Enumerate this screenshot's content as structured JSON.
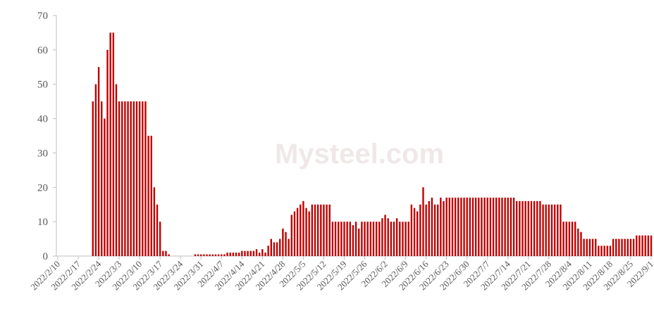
{
  "chart_data": {
    "type": "bar",
    "color": "#c00000",
    "watermark": "Mysteel.com",
    "categories": [
      "2022/2/10",
      null,
      null,
      null,
      null,
      null,
      null,
      "2022/2/17",
      null,
      null,
      null,
      null,
      null,
      null,
      "2022/2/24",
      null,
      null,
      null,
      null,
      null,
      null,
      "2022/3/3",
      null,
      null,
      null,
      null,
      null,
      null,
      "2022/3/10",
      null,
      null,
      null,
      null,
      null,
      null,
      "2022/3/17",
      null,
      null,
      null,
      null,
      null,
      null,
      "2022/3/24",
      null,
      null,
      null,
      null,
      null,
      null,
      "2022/3/31",
      null,
      null,
      null,
      null,
      null,
      null,
      "2022/4/7",
      null,
      null,
      null,
      null,
      null,
      null,
      "2022/4/14",
      null,
      null,
      null,
      null,
      null,
      null,
      "2022/4/21",
      null,
      null,
      null,
      null,
      null,
      null,
      "2022/4/28",
      null,
      null,
      null,
      null,
      null,
      null,
      "2022/5/5",
      null,
      null,
      null,
      null,
      null,
      null,
      "2022/5/12",
      null,
      null,
      null,
      null,
      null,
      null,
      "2022/5/19",
      null,
      null,
      null,
      null,
      null,
      null,
      "2022/5/26",
      null,
      null,
      null,
      null,
      null,
      null,
      "2022/6/2",
      null,
      null,
      null,
      null,
      null,
      null,
      "2022/6/9",
      null,
      null,
      null,
      null,
      null,
      null,
      "2022/6/16",
      null,
      null,
      null,
      null,
      null,
      null,
      "2022/6/23",
      null,
      null,
      null,
      null,
      null,
      null,
      "2022/6/30",
      null,
      null,
      null,
      null,
      null,
      null,
      "2022/7/7",
      null,
      null,
      null,
      null,
      null,
      null,
      "2022/7/14",
      null,
      null,
      null,
      null,
      null,
      null,
      "2022/7/21",
      null,
      null,
      null,
      null,
      null,
      null,
      "2022/7/28",
      null,
      null,
      null,
      null,
      null,
      null,
      "2022/8/4",
      null,
      null,
      null,
      null,
      null,
      null,
      "2022/8/11",
      null,
      null,
      null,
      null,
      null,
      null,
      "2022/8/18",
      null,
      null,
      null,
      null,
      null,
      null,
      "2022/8/25",
      null,
      null,
      null,
      null,
      null,
      null,
      "2022/9/1"
    ],
    "values": [
      null,
      null,
      null,
      null,
      null,
      null,
      null,
      null,
      null,
      null,
      null,
      null,
      45,
      50,
      55,
      45,
      40,
      60,
      65,
      65,
      50,
      45,
      45,
      45,
      45,
      45,
      45,
      45,
      45,
      45,
      45,
      35,
      35,
      20,
      15,
      10,
      1.5,
      1.5,
      0.5,
      null,
      null,
      null,
      null,
      null,
      null,
      null,
      null,
      0.5,
      0.5,
      0.5,
      0.5,
      0.5,
      0.5,
      0.5,
      0.5,
      0.5,
      0.5,
      0.5,
      1,
      1,
      1,
      1,
      1,
      1.5,
      1.5,
      1.5,
      1.5,
      1.5,
      2,
      1,
      2,
      1,
      3,
      5,
      4,
      4,
      5,
      8,
      7,
      5,
      12,
      13,
      14,
      15,
      16,
      14,
      13,
      15,
      15,
      15,
      15,
      15,
      15,
      15,
      10,
      10,
      10,
      10,
      10,
      10,
      10,
      9,
      10,
      8,
      10,
      10,
      10,
      10,
      10,
      10,
      10,
      11,
      12,
      11,
      10,
      10,
      11,
      10,
      10,
      10,
      10,
      15,
      14,
      13,
      15,
      20,
      15,
      16,
      17,
      15,
      15,
      17,
      16,
      17,
      17,
      17,
      17,
      17,
      17,
      17,
      17,
      17,
      17,
      17,
      17,
      17,
      17,
      17,
      17,
      17,
      17,
      17,
      17,
      17,
      17,
      17,
      17,
      16,
      16,
      16,
      16,
      16,
      16,
      16,
      16,
      16,
      15,
      15,
      15,
      15,
      15,
      15,
      15,
      10,
      10,
      10,
      10,
      10,
      8,
      7,
      5,
      5,
      5,
      5,
      5,
      3,
      3,
      3,
      3,
      3,
      5,
      5,
      5,
      5,
      5,
      5,
      5,
      5,
      6,
      6,
      6,
      6,
      6,
      6
    ],
    "ylim": [
      0,
      70
    ],
    "yticks": [
      0,
      10,
      20,
      30,
      40,
      50,
      60,
      70
    ],
    "grid": false
  }
}
